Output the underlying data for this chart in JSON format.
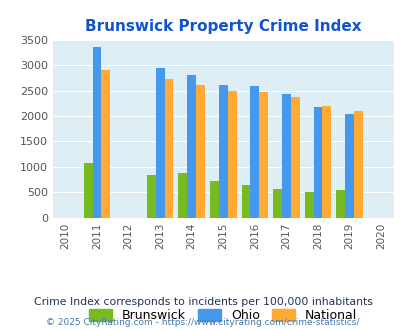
{
  "title": "Brunswick Property Crime Index",
  "data_years": [
    2011,
    2013,
    2014,
    2015,
    2016,
    2017,
    2018,
    2019
  ],
  "brunswick": [
    1080,
    840,
    880,
    720,
    650,
    570,
    510,
    550
  ],
  "ohio": [
    3360,
    2950,
    2800,
    2600,
    2580,
    2430,
    2170,
    2040
  ],
  "national": [
    2900,
    2720,
    2600,
    2500,
    2480,
    2380,
    2190,
    2100
  ],
  "brunswick_color": "#77bb22",
  "ohio_color": "#4499ee",
  "national_color": "#ffaa33",
  "bg_color": "#ddeef5",
  "ylim": [
    0,
    3500
  ],
  "yticks": [
    0,
    500,
    1000,
    1500,
    2000,
    2500,
    3000,
    3500
  ],
  "subtitle": "Crime Index corresponds to incidents per 100,000 inhabitants",
  "footer": "© 2025 CityRating.com - https://www.cityrating.com/crime-statistics/",
  "title_color": "#1155cc",
  "subtitle_color": "#223355",
  "footer_color": "#4477aa",
  "bar_width": 0.28
}
